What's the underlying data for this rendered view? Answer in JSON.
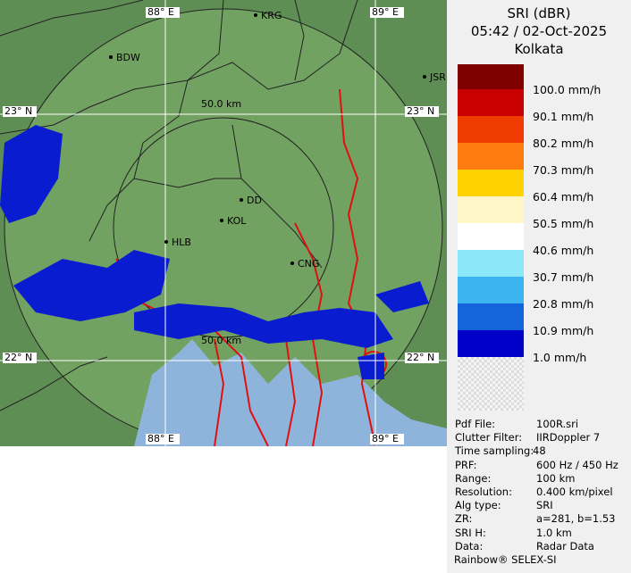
{
  "map": {
    "grid_labels": [
      "88° E",
      "89° E",
      "23° N",
      "22° N",
      "88° E",
      "89° E",
      "23° N",
      "22° N"
    ],
    "range_labels": [
      "50.0 km",
      "50.0 km"
    ],
    "places": [
      "BDW",
      "KRG",
      "JSR",
      "DD",
      "KOL",
      "HLB",
      "CNG"
    ]
  },
  "panel": {
    "title": "SRI (dBR)",
    "time": "05:42 / 02-Oct-2025",
    "station": "Kolkata",
    "legend": [
      {
        "label": "100.0 mm/h",
        "color": "#800000"
      },
      {
        "label": "90.1 mm/h",
        "color": "#c80000"
      },
      {
        "label": "80.2 mm/h",
        "color": "#f03c00"
      },
      {
        "label": "70.3 mm/h",
        "color": "#ff7c10"
      },
      {
        "label": "60.4 mm/h",
        "color": "#ffd200"
      },
      {
        "label": "50.5 mm/h",
        "color": "#fff6c8"
      },
      {
        "label": "40.6 mm/h",
        "color": "#ffffff"
      },
      {
        "label": "30.7 mm/h",
        "color": "#8ce8f8"
      },
      {
        "label": "20.8 mm/h",
        "color": "#3cb4f0"
      },
      {
        "label": "10.9 mm/h",
        "color": "#1464dc"
      },
      {
        "label": "1.0 mm/h",
        "color": "#0000c8"
      }
    ],
    "info": [
      [
        "Pdf File:",
        "100R.sri"
      ],
      [
        "Clutter Filter:",
        "IIRDoppler 7"
      ],
      [
        "Time sampling:",
        "48"
      ],
      [
        "PRF:",
        "600 Hz / 450 Hz"
      ],
      [
        "Range:",
        "100 km"
      ],
      [
        "Resolution:",
        "0.400 km/pixel"
      ],
      [
        "Alg type:",
        "SRI"
      ],
      [
        "ZR:",
        "a=281, b=1.53"
      ],
      [
        "SRI H:",
        "1.0 km"
      ],
      [
        "Data:",
        "Radar Data"
      ]
    ],
    "footer": "Rainbow® SELEX-SI"
  }
}
